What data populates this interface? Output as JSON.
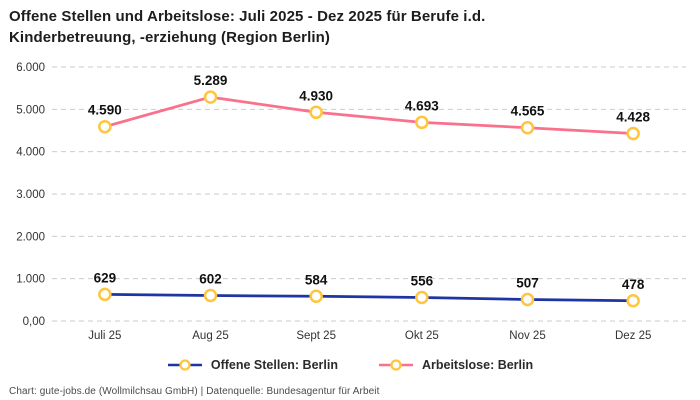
{
  "header": {
    "title_line1": "Offene Stellen und Arbeitslose: Juli 2025 - Dez 2025 für Berufe i.d.",
    "title_line2": "Kinderbetreuung, -erziehung (Region Berlin)"
  },
  "chart_data": {
    "type": "line",
    "categories": [
      "Juli 25",
      "Aug 25",
      "Sept 25",
      "Okt 25",
      "Nov 25",
      "Dez 25"
    ],
    "series": [
      {
        "name": "Offene Stellen: Berlin",
        "color": "#1F35A3",
        "values": [
          629,
          602,
          584,
          556,
          507,
          478
        ],
        "labels": [
          "629",
          "602",
          "584",
          "556",
          "507",
          "478"
        ]
      },
      {
        "name": "Arbeitslose: Berlin",
        "color": "#F9718B",
        "values": [
          4590,
          5289,
          4930,
          4693,
          4565,
          4428
        ],
        "labels": [
          "4.590",
          "5.289",
          "4.930",
          "4.693",
          "4.565",
          "4.428"
        ]
      }
    ],
    "marker": {
      "ring_color": "#FFC53D",
      "fill_color": "#FFFFFF"
    },
    "ylim": [
      0,
      6000
    ],
    "yticks": {
      "values": [
        0,
        1000,
        2000,
        3000,
        4000,
        5000,
        6000
      ],
      "labels": [
        "0,00",
        "1.000",
        "2.000",
        "3.000",
        "4.000",
        "5.000",
        "6.000"
      ]
    },
    "grid": "dashed-horizontal",
    "gridline_color": "#CBCBCB",
    "tick_label_color": "#333333",
    "data_label_color": "#111111",
    "legend_position": "bottom-center"
  },
  "footer": {
    "text": "Chart: gute-jobs.de (Wollmilchsau GmbH) | Datenquelle: Bundesagentur für Arbeit"
  }
}
